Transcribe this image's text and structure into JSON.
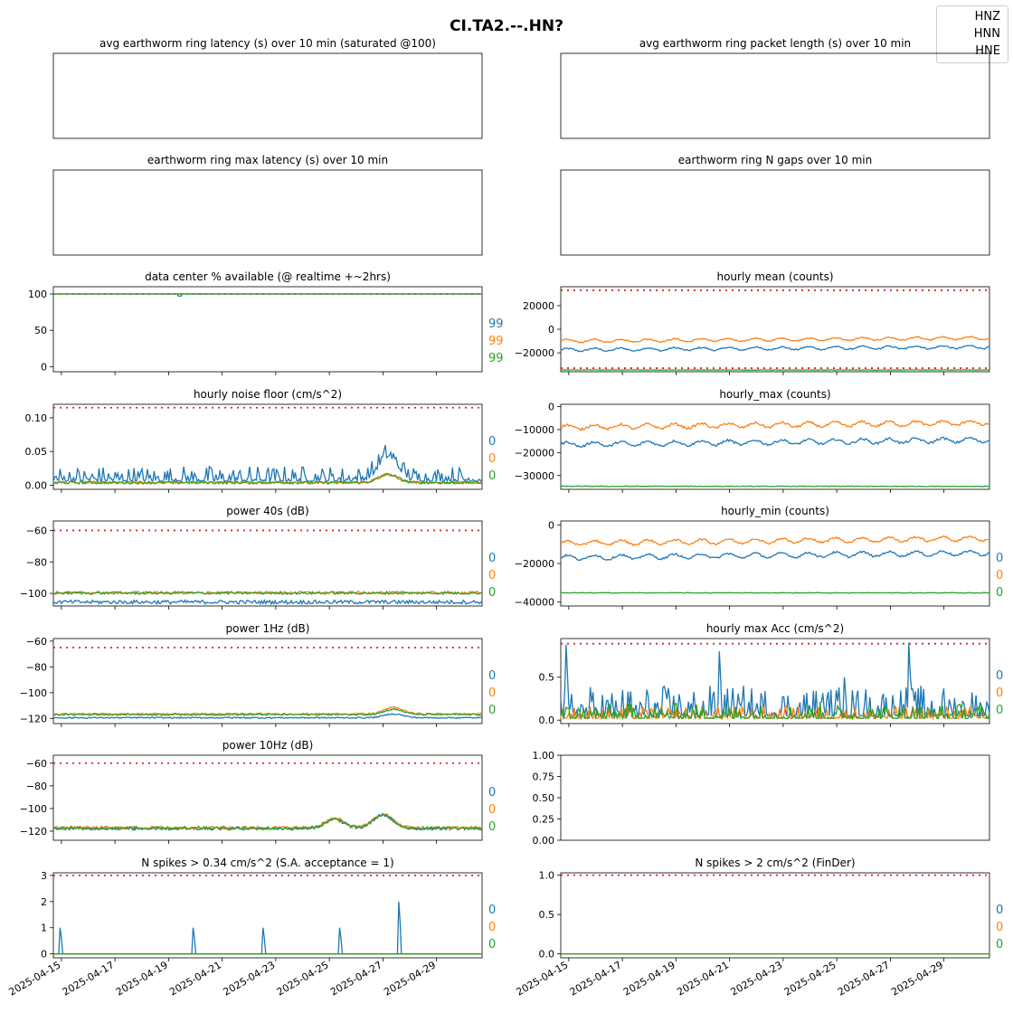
{
  "figure": {
    "title": "CI.TA2.--.HN?",
    "legend": [
      "HNZ",
      "HNN",
      "HNE"
    ],
    "colors": {
      "HNZ": "#1f77b4",
      "HNN": "#ff7f0e",
      "HNE": "#2ca02c",
      "threshold": "#d62728"
    },
    "date_ticks": [
      "2025-04-15",
      "2025-04-17",
      "2025-04-19",
      "2025-04-21",
      "2025-04-23",
      "2025-04-25",
      "2025-04-27",
      "2025-04-29"
    ]
  },
  "chart_data": [
    {
      "id": "p0",
      "type": "line",
      "title": "avg earthworm ring latency (s)   over 10 min (saturated @100)",
      "empty": true,
      "ticks": [],
      "right_labels": []
    },
    {
      "id": "p1",
      "type": "line",
      "title": "avg earthworm ring packet length (s)   over 10 min",
      "empty": true,
      "ticks": [],
      "right_labels": []
    },
    {
      "id": "p2",
      "type": "line",
      "title": "earthworm ring max latency (s)   over 10 min",
      "empty": true,
      "ticks": [],
      "right_labels": []
    },
    {
      "id": "p3",
      "type": "line",
      "title": "earthworm ring N gaps   over 10 min",
      "empty": true,
      "ticks": [],
      "right_labels": []
    },
    {
      "id": "p4",
      "type": "line",
      "title": "data center % available (@ realtime +~2hrs)",
      "ylim": [
        -7,
        110
      ],
      "ticks": [
        0,
        50,
        100
      ],
      "tick_labels": [
        "0",
        "50",
        "100"
      ],
      "thresholds": [
        100
      ],
      "right_labels": [
        "99",
        "99",
        "99"
      ],
      "series": [
        {
          "name": "HNZ",
          "base": 100,
          "noise": 0,
          "dips": [
            [
              4.7,
              97
            ]
          ]
        },
        {
          "name": "HNN",
          "base": 100,
          "noise": 0
        },
        {
          "name": "HNE",
          "base": 100,
          "noise": 0
        }
      ]
    },
    {
      "id": "p5",
      "type": "line",
      "title": "hourly mean (counts)",
      "ylim": [
        -36000,
        36000
      ],
      "ticks": [
        -20000,
        0,
        20000
      ],
      "tick_labels": [
        "−20000",
        "0",
        "20000"
      ],
      "thresholds": [
        33000,
        -33000
      ],
      "right_labels": [],
      "series": [
        {
          "name": "HNZ",
          "base": -17500,
          "noise": 600,
          "wave": 1200,
          "trend": 2500
        },
        {
          "name": "HNN",
          "base": -10000,
          "noise": 500,
          "wave": 1200,
          "trend": 2500
        },
        {
          "name": "HNE",
          "base": -34500,
          "noise": 150,
          "wave": 0,
          "trend": 0
        }
      ]
    },
    {
      "id": "p6",
      "type": "line",
      "title": "hourly noise floor (cm/s^2)",
      "ylim": [
        -0.006,
        0.12
      ],
      "ticks": [
        0.0,
        0.05,
        0.1
      ],
      "tick_labels": [
        "0.00",
        "0.05",
        "0.10"
      ],
      "thresholds": [
        0.115
      ],
      "right_labels": [
        "0",
        "0",
        "0"
      ],
      "series": [
        {
          "name": "HNZ",
          "base": 0.006,
          "noise": 0.008,
          "spiky": true,
          "bump": [
            [
              12.5,
              0.035
            ]
          ]
        },
        {
          "name": "HNN",
          "base": 0.004,
          "noise": 0.002,
          "bump": [
            [
              12.5,
              0.012
            ]
          ]
        },
        {
          "name": "HNE",
          "base": 0.004,
          "noise": 0.002,
          "bump": [
            [
              12.5,
              0.012
            ]
          ]
        }
      ]
    },
    {
      "id": "p7",
      "type": "line",
      "title": "hourly_max (counts)",
      "ylim": [
        -36000,
        1000
      ],
      "ticks": [
        -30000,
        -20000,
        -10000,
        0
      ],
      "tick_labels": [
        "−30000",
        "−20000",
        "−10000",
        "0"
      ],
      "thresholds": [],
      "right_labels": [],
      "series": [
        {
          "name": "HNZ",
          "base": -16500,
          "noise": 500,
          "wave": 1000,
          "trend": 2000
        },
        {
          "name": "HNN",
          "base": -9000,
          "noise": 500,
          "wave": 1000,
          "trend": 2000
        },
        {
          "name": "HNE",
          "base": -34700,
          "noise": 150,
          "wave": 0,
          "trend": 0
        }
      ]
    },
    {
      "id": "p8",
      "type": "line",
      "title": "power 40s (dB)",
      "ylim": [
        -108,
        -54
      ],
      "ticks": [
        -100,
        -80,
        -60
      ],
      "tick_labels": [
        "−100",
        "−80",
        "−60"
      ],
      "thresholds": [
        -60
      ],
      "right_labels": [
        "0",
        "0",
        "0"
      ],
      "series": [
        {
          "name": "HNZ",
          "base": -105.5,
          "noise": 1.2
        },
        {
          "name": "HNN",
          "base": -99.5,
          "noise": 0.8
        },
        {
          "name": "HNE",
          "base": -99.8,
          "noise": 0.8
        }
      ]
    },
    {
      "id": "p9",
      "type": "line",
      "title": "hourly_min (counts)",
      "ylim": [
        -42000,
        2000
      ],
      "ticks": [
        -40000,
        -20000,
        0
      ],
      "tick_labels": [
        "−40000",
        "−20000",
        "0"
      ],
      "thresholds": [],
      "right_labels": [
        "0",
        "0",
        "0"
      ],
      "series": [
        {
          "name": "HNZ",
          "base": -17000,
          "noise": 500,
          "wave": 1200,
          "trend": 2500
        },
        {
          "name": "HNN",
          "base": -9500,
          "noise": 500,
          "wave": 1200,
          "trend": 2500
        },
        {
          "name": "HNE",
          "base": -35200,
          "noise": 150,
          "wave": 0,
          "trend": 0
        }
      ]
    },
    {
      "id": "p10",
      "type": "line",
      "title": "power 1Hz (dB)",
      "ylim": [
        -124,
        -58
      ],
      "ticks": [
        -120,
        -100,
        -80,
        -60
      ],
      "tick_labels": [
        "−120",
        "−100",
        "−80",
        "−60"
      ],
      "thresholds": [
        -65
      ],
      "right_labels": [
        "0",
        "0",
        "0"
      ],
      "series": [
        {
          "name": "HNZ",
          "base": -119.5,
          "noise": 0.5,
          "bump": [
            [
              12.7,
              3
            ]
          ]
        },
        {
          "name": "HNN",
          "base": -116.5,
          "noise": 0.6,
          "bump": [
            [
              12.7,
              5
            ]
          ]
        },
        {
          "name": "HNE",
          "base": -117,
          "noise": 0.6,
          "bump": [
            [
              12.7,
              4
            ]
          ]
        }
      ]
    },
    {
      "id": "p11",
      "type": "line",
      "title": "hourly max Acc (cm/s^2)",
      "ylim": [
        -0.04,
        0.95
      ],
      "ticks": [
        0.0,
        0.5
      ],
      "tick_labels": [
        "0.0",
        "0.5"
      ],
      "thresholds": [
        0.89
      ],
      "right_labels": [
        "0",
        "0",
        "0"
      ],
      "series": [
        {
          "name": "HNZ",
          "base": 0.05,
          "noise": 0.12,
          "spiky": true,
          "peaks": [
            [
              0.2,
              0.88
            ],
            [
              5.9,
              0.8
            ],
            [
              13.0,
              0.9
            ],
            [
              10.6,
              0.5
            ]
          ]
        },
        {
          "name": "HNN",
          "base": 0.02,
          "noise": 0.05,
          "spiky": true
        },
        {
          "name": "HNE",
          "base": 0.02,
          "noise": 0.06,
          "spiky": true
        }
      ]
    },
    {
      "id": "p12",
      "type": "line",
      "title": "power 10Hz (dB)",
      "ylim": [
        -128,
        -53
      ],
      "ticks": [
        -120,
        -100,
        -80,
        -60
      ],
      "tick_labels": [
        "−120",
        "−100",
        "−80",
        "−60"
      ],
      "thresholds": [
        -60
      ],
      "right_labels": [
        "0",
        "0",
        "0"
      ],
      "series": [
        {
          "name": "HNZ",
          "base": -117.5,
          "noise": 1.4,
          "bump": [
            [
              10.5,
              8
            ],
            [
              12.3,
              12
            ]
          ]
        },
        {
          "name": "HNN",
          "base": -117,
          "noise": 1.4,
          "bump": [
            [
              10.5,
              8
            ],
            [
              12.3,
              12
            ]
          ]
        },
        {
          "name": "HNE",
          "base": -117.5,
          "noise": 1.4,
          "bump": [
            [
              10.5,
              8
            ],
            [
              12.3,
              12
            ]
          ]
        }
      ]
    },
    {
      "id": "p13",
      "type": "line",
      "title": "",
      "empty_axes": true,
      "ylim": [
        0,
        1
      ],
      "ticks": [
        0.0,
        0.25,
        0.5,
        0.75,
        1.0
      ],
      "tick_labels": [
        "0.00",
        "0.25",
        "0.50",
        "0.75",
        "1.00"
      ],
      "thresholds": [],
      "right_labels": []
    },
    {
      "id": "p14",
      "type": "line",
      "title": "N spikes > 0.34 cm/s^2 (S.A. acceptance = 1)",
      "ylim": [
        -0.15,
        3.1
      ],
      "ticks": [
        0,
        1,
        2,
        3
      ],
      "tick_labels": [
        "0",
        "1",
        "2",
        "3"
      ],
      "thresholds": [
        3
      ],
      "right_labels": [
        "0",
        "0",
        "0"
      ],
      "series": [
        {
          "name": "HNZ",
          "base": 0,
          "noise": 0,
          "peaks": [
            [
              0.25,
              1
            ],
            [
              5.2,
              1
            ],
            [
              7.8,
              1
            ],
            [
              10.7,
              1
            ],
            [
              12.9,
              2
            ]
          ]
        },
        {
          "name": "HNN",
          "base": 0,
          "noise": 0
        },
        {
          "name": "HNE",
          "base": 0,
          "noise": 0
        }
      ]
    },
    {
      "id": "p15",
      "type": "line",
      "title": "N spikes > 2 cm/s^2 (FinDer)",
      "ylim": [
        -0.05,
        1.03
      ],
      "ticks": [
        0.0,
        0.5,
        1.0
      ],
      "tick_labels": [
        "0.0",
        "0.5",
        "1.0"
      ],
      "thresholds": [
        1
      ],
      "right_labels": [
        "0",
        "0",
        "0"
      ],
      "series": [
        {
          "name": "HNZ",
          "base": 0,
          "noise": 0
        },
        {
          "name": "HNN",
          "base": 0,
          "noise": 0
        },
        {
          "name": "HNE",
          "base": 0,
          "noise": 0
        }
      ]
    }
  ]
}
